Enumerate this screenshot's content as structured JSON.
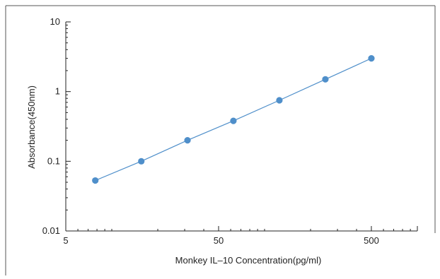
{
  "chart_data": {
    "type": "line",
    "title": "",
    "xlabel": "Monkey IL–10 Concentration(pg/ml)",
    "ylabel": "Absorbance(450nm)",
    "x_scale": "log",
    "y_scale": "log",
    "xlim": [
      5,
      1000
    ],
    "ylim": [
      0.01,
      10
    ],
    "x_ticks": [
      {
        "value": 5,
        "label": "5"
      },
      {
        "value": 50,
        "label": "50"
      },
      {
        "value": 500,
        "label": "500"
      }
    ],
    "y_ticks": [
      {
        "value": 10,
        "label": "10"
      },
      {
        "value": 1,
        "label": "1"
      },
      {
        "value": 0.1,
        "label": "0.1"
      },
      {
        "value": 0.01,
        "label": "0.01"
      }
    ],
    "grid": false,
    "legend": "none",
    "series": [
      {
        "color": "#4f8fca",
        "x": [
          7.8,
          15.6,
          31.3,
          62.5,
          125,
          250,
          500
        ],
        "y": [
          0.053,
          0.1,
          0.2,
          0.38,
          0.75,
          1.5,
          3.0
        ]
      }
    ]
  }
}
